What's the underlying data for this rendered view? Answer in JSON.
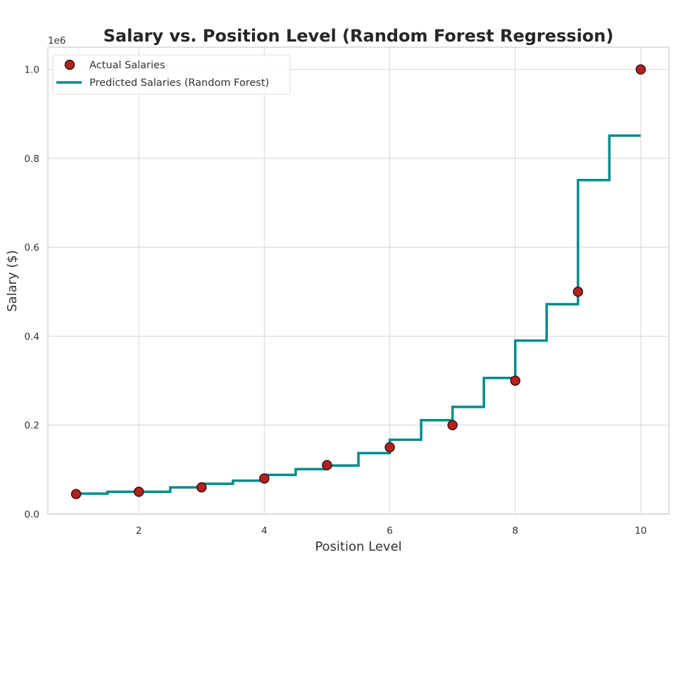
{
  "chart_data": {
    "type": "line",
    "title": "Salary vs. Position Level (Random Forest Regression)",
    "xlabel": "Position Level",
    "ylabel": "Salary ($)",
    "y_offset_label": "1e6",
    "xlim": [
      0.55,
      10.45
    ],
    "ylim": [
      0,
      1050000
    ],
    "x_ticks": [
      2,
      4,
      6,
      8,
      10
    ],
    "x_tick_labels": [
      "2",
      "4",
      "6",
      "8",
      "10"
    ],
    "y_ticks": [
      0,
      200000,
      400000,
      600000,
      800000,
      1000000
    ],
    "y_tick_labels": [
      "0.0",
      "0.2",
      "0.4",
      "0.6",
      "0.8",
      "1.0"
    ],
    "grid": true,
    "legend_position": "top-left",
    "series": [
      {
        "name": "Actual Salaries",
        "kind": "scatter",
        "color": "#b22222",
        "edge_color": "#3a1010",
        "x": [
          1,
          2,
          3,
          4,
          5,
          6,
          7,
          8,
          9,
          10
        ],
        "y": [
          45000,
          50000,
          60000,
          80000,
          110000,
          150000,
          200000,
          300000,
          500000,
          1000000
        ]
      },
      {
        "name": "Predicted Salaries (Random Forest)",
        "kind": "step",
        "color": "#008b8b",
        "x": [
          1.0,
          1.5,
          1.5,
          2.5,
          2.5,
          3.0,
          3.0,
          3.5,
          3.5,
          4.0,
          4.0,
          4.5,
          4.5,
          5.0,
          5.0,
          5.5,
          5.5,
          6.0,
          6.0,
          6.5,
          6.5,
          7.0,
          7.0,
          7.5,
          7.5,
          8.0,
          8.0,
          8.5,
          8.5,
          9.0,
          9.0,
          9.5,
          9.5,
          10.0
        ],
        "y": [
          46000,
          46000,
          50000,
          50000,
          60000,
          60000,
          68000,
          68000,
          75000,
          75000,
          88000,
          88000,
          101000,
          101000,
          109000,
          109000,
          137000,
          137000,
          167000,
          167000,
          211000,
          211000,
          241000,
          241000,
          306000,
          306000,
          390000,
          390000,
          472000,
          472000,
          751000,
          751000,
          851000,
          851000
        ]
      }
    ]
  }
}
